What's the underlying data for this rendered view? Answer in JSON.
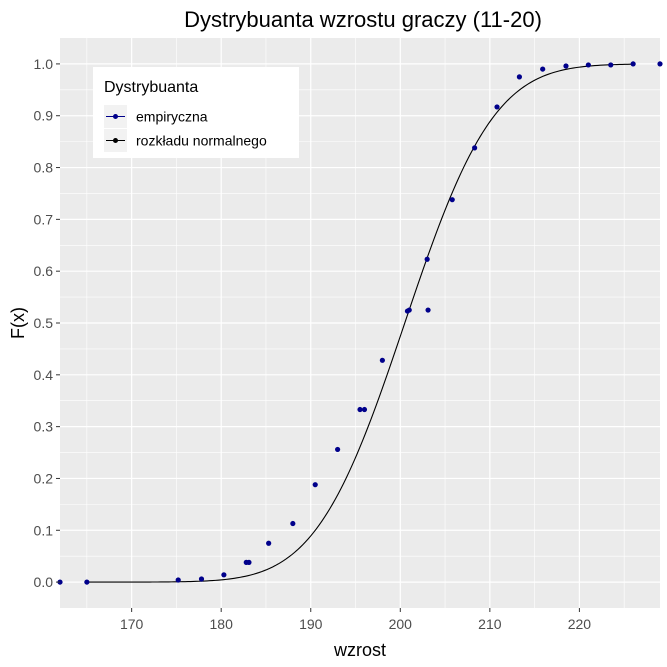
{
  "chart_data": {
    "type": "scatter",
    "title": "Dystrybuanta wzrostu graczy (11-20)",
    "xlabel": "wzrost",
    "ylabel": "F(x)",
    "xlim": [
      162,
      229
    ],
    "ylim": [
      -0.05,
      1.05
    ],
    "x_ticks": [
      170,
      180,
      190,
      200,
      210,
      220
    ],
    "y_ticks": [
      0.0,
      0.1,
      0.2,
      0.3,
      0.4,
      0.5,
      0.6,
      0.7,
      0.8,
      0.9,
      1.0
    ],
    "y_tick_labels": [
      "0.0",
      "0.1",
      "0.2",
      "0.3",
      "0.4",
      "0.5",
      "0.6",
      "0.7",
      "0.8",
      "0.9",
      "1.0"
    ],
    "grid": true,
    "legend": {
      "title": "Dystrybuanta",
      "placement": "top-left",
      "entries": [
        "empiryczna",
        "rozkładu normalnego"
      ]
    },
    "series": [
      {
        "name": "empiryczna",
        "kind": "points",
        "color": "#00008B",
        "x": [
          162,
          165,
          175.2,
          177.8,
          180.3,
          182.8,
          183.1,
          185.3,
          188.0,
          190.5,
          193.0,
          195.5,
          196.0,
          198.0,
          200.8,
          201.0,
          203.0,
          203.1,
          205.8,
          208.3,
          210.8,
          213.3,
          215.9,
          218.5,
          221.0,
          223.5,
          226.0,
          229.0
        ],
        "y": [
          0.0,
          0.0,
          0.004,
          0.006,
          0.014,
          0.038,
          0.038,
          0.075,
          0.113,
          0.188,
          0.256,
          0.333,
          0.333,
          0.428,
          0.523,
          0.525,
          0.623,
          0.525,
          0.738,
          0.838,
          0.917,
          0.975,
          0.99,
          0.996,
          0.998,
          0.998,
          1.0,
          1.0
        ]
      },
      {
        "name": "rozkładu normalnego",
        "kind": "line",
        "color": "#000000",
        "distribution": "normal",
        "mean": 200.5,
        "sd": 7.8,
        "x_range": [
          165,
          226
        ]
      }
    ]
  }
}
